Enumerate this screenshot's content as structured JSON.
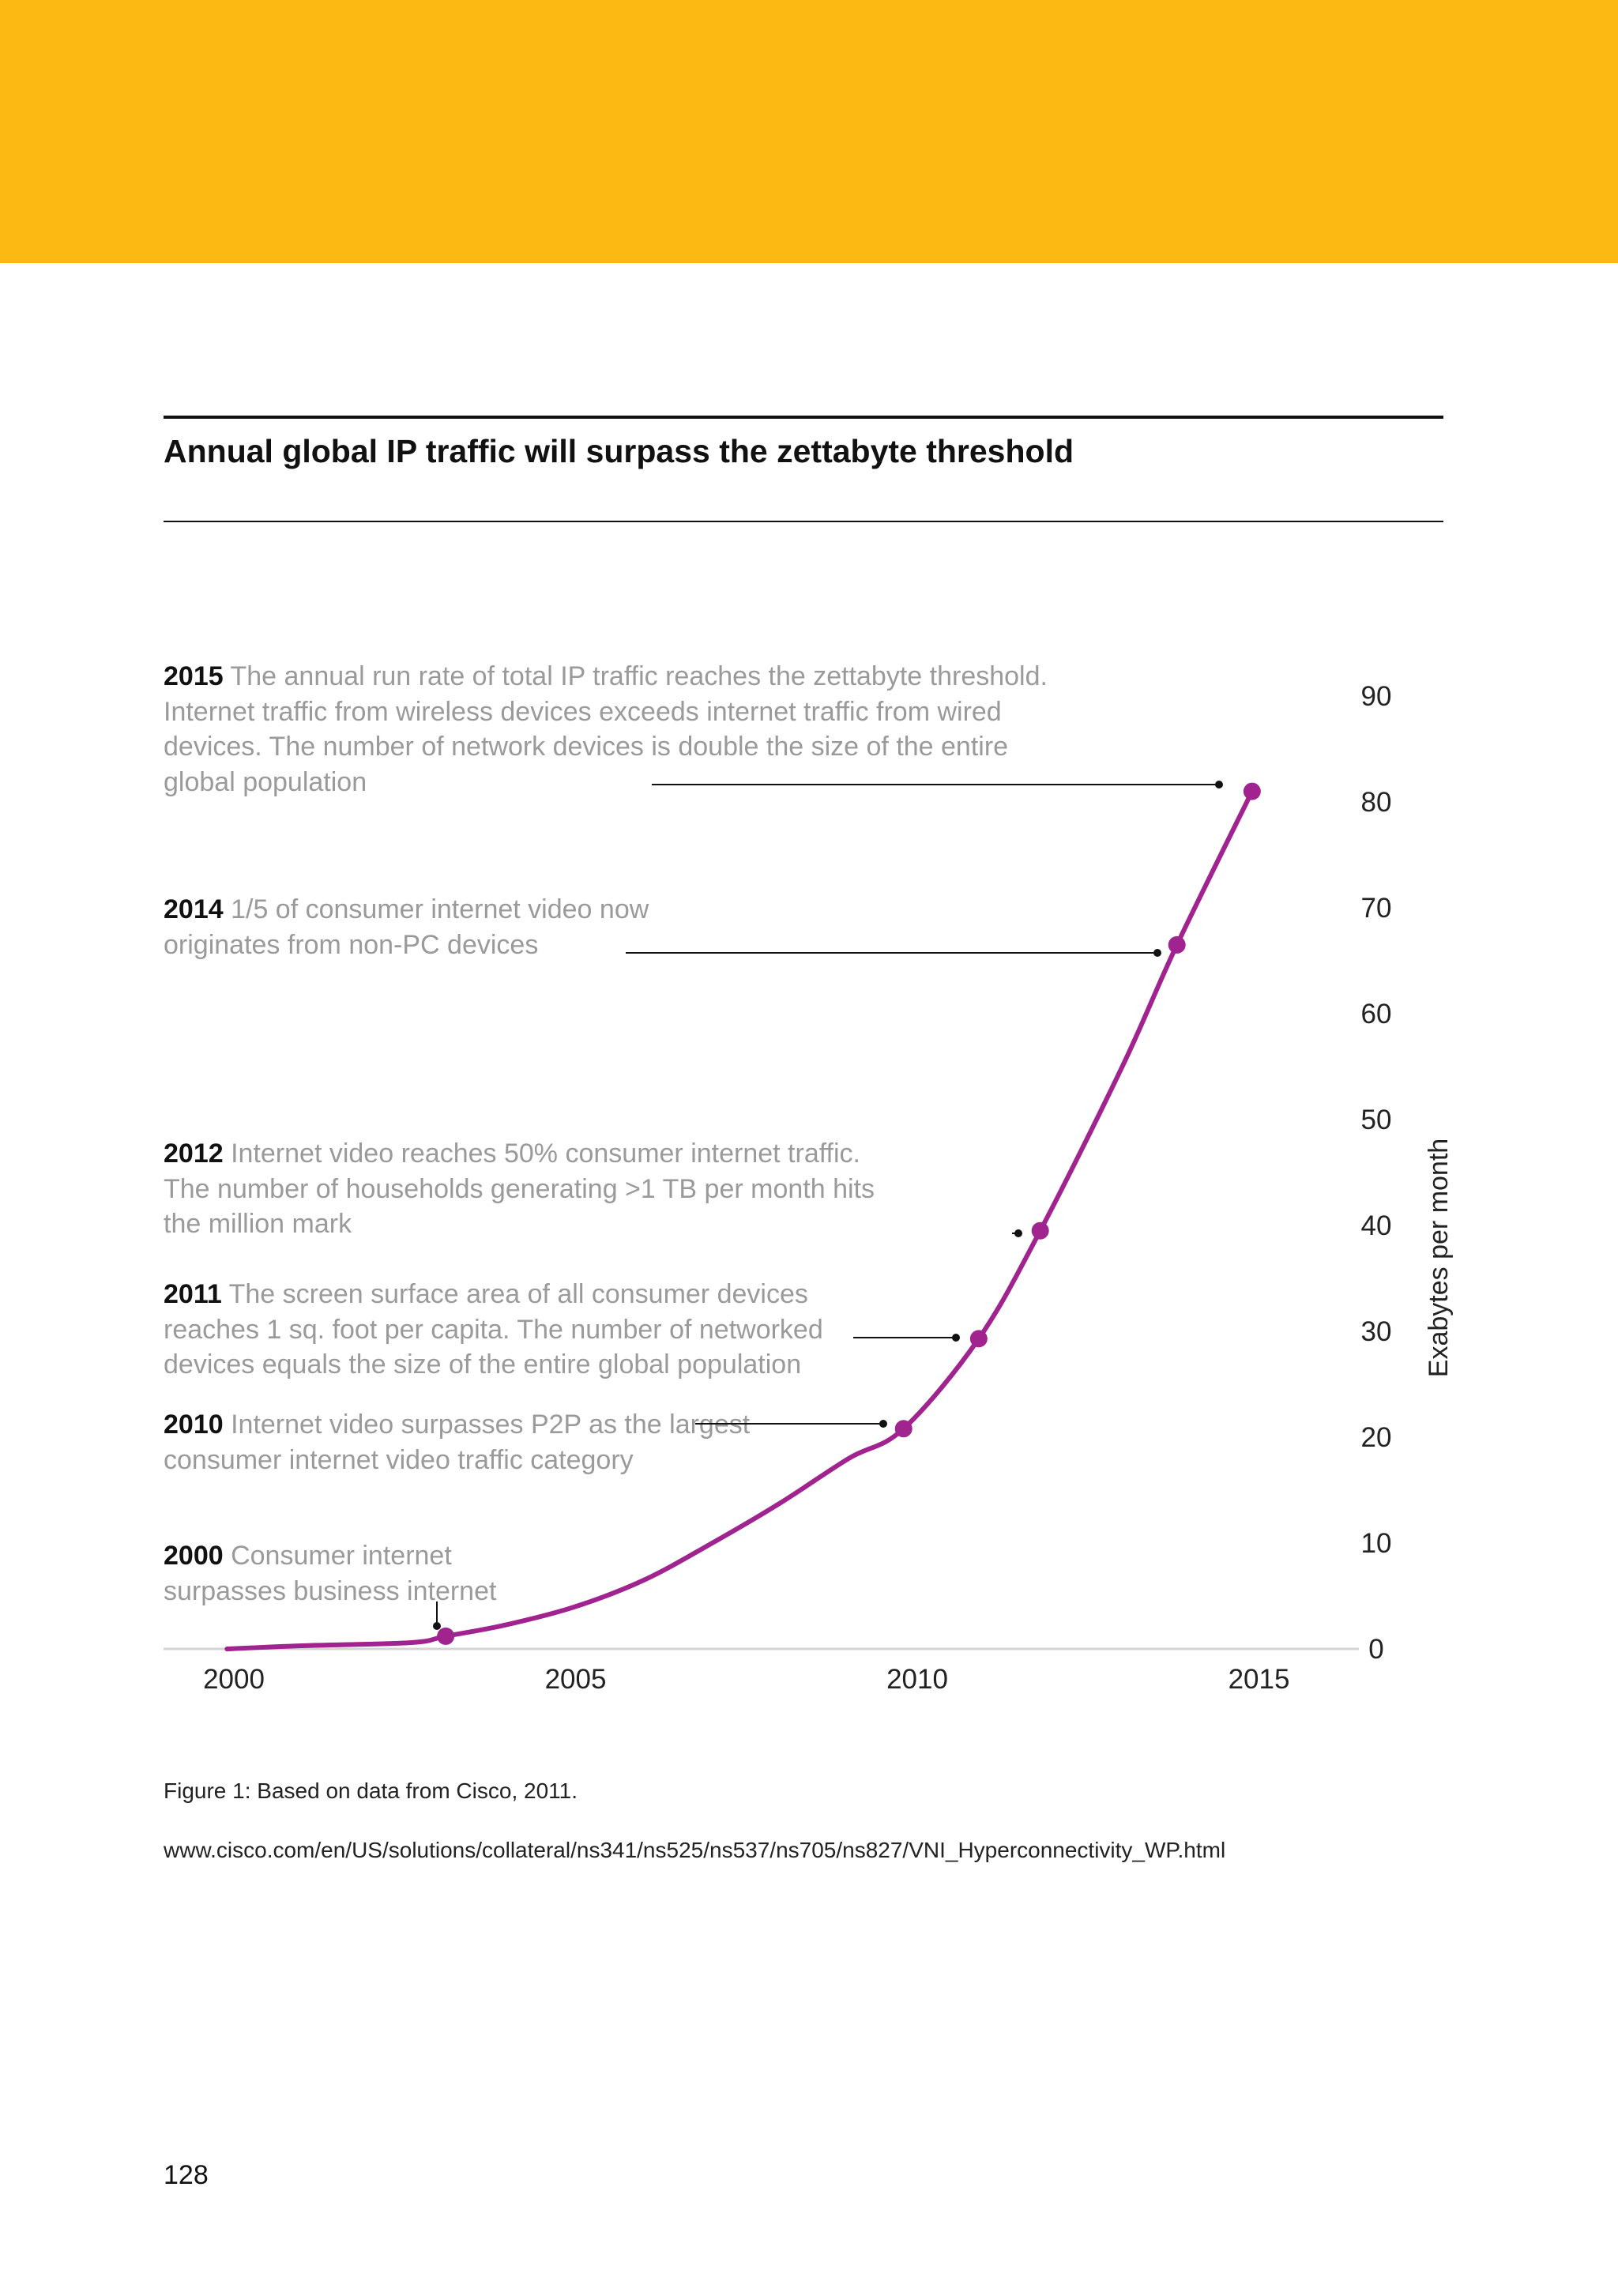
{
  "page": {
    "title": "Annual global IP traffic will surpass the zettabyte threshold",
    "caption": "Figure 1: Based on data from Cisco, 2011.",
    "source_url": "www.cisco.com/en/US/solutions/collateral/ns341/ns525/ns537/ns705/ns827/VNI_Hyperconnectivity_WP.html",
    "page_number": "128",
    "accent_color": "#FDB913",
    "line_color": "#A0238F"
  },
  "annotations": {
    "a2015": {
      "year": "2015",
      "text": "The annual run rate of total IP traffic reaches the zettabyte threshold. Internet traffic from wireless devices exceeds internet traffic from wired devices. The number of network devices is double the size of the entire global population"
    },
    "a2014": {
      "year": "2014",
      "text": "1/5 of consumer internet video now originates from non-PC devices"
    },
    "a2012": {
      "year": "2012",
      "text": "Internet video reaches 50% consumer internet traffic. The number of households generating >1 TB per month hits the million mark"
    },
    "a2011": {
      "year": "2011",
      "text": "The screen surface area of all consumer devices reaches 1 sq. foot per capita. The number of networked devices equals the size of the entire global population"
    },
    "a2010": {
      "year": "2010",
      "text": "Internet video surpasses P2P as the largest consumer internet video traffic category"
    },
    "a2000": {
      "year": "2000",
      "text": "Consumer internet surpasses business internet"
    }
  },
  "chart_data": {
    "type": "line",
    "title": "Annual global IP traffic will surpass the zettabyte threshold",
    "xlabel": "",
    "ylabel": "Exabytes per month",
    "xlim": [
      1999,
      2016.5
    ],
    "ylim": [
      0,
      90
    ],
    "x_ticks": [
      "2000",
      "2005",
      "2010",
      "2015"
    ],
    "y_ticks": [
      "0",
      "10",
      "20",
      "30",
      "40",
      "50",
      "60",
      "70",
      "80",
      "90"
    ],
    "y_axis_side": "right",
    "grid": false,
    "series": [
      {
        "x": [
          1999.9,
          2001,
          2002.6,
          2003.1,
          2004,
          2005,
          2006,
          2007,
          2008,
          2009,
          2009.8,
          2010.9,
          2011.8,
          2013,
          2013.8,
          2014.9
        ],
        "y": [
          0,
          0.3,
          0.6,
          1.2,
          2.3,
          4.0,
          6.5,
          10.0,
          13.8,
          18.0,
          20.8,
          29.3,
          39.5,
          55.0,
          66.5,
          81.0
        ]
      }
    ],
    "markers": [
      {
        "x": 2003.1,
        "y": 1.2
      },
      {
        "x": 2009.8,
        "y": 20.8
      },
      {
        "x": 2010.9,
        "y": 29.3
      },
      {
        "x": 2011.8,
        "y": 39.5
      },
      {
        "x": 2013.8,
        "y": 66.5
      },
      {
        "x": 2014.9,
        "y": 81.0
      }
    ]
  }
}
